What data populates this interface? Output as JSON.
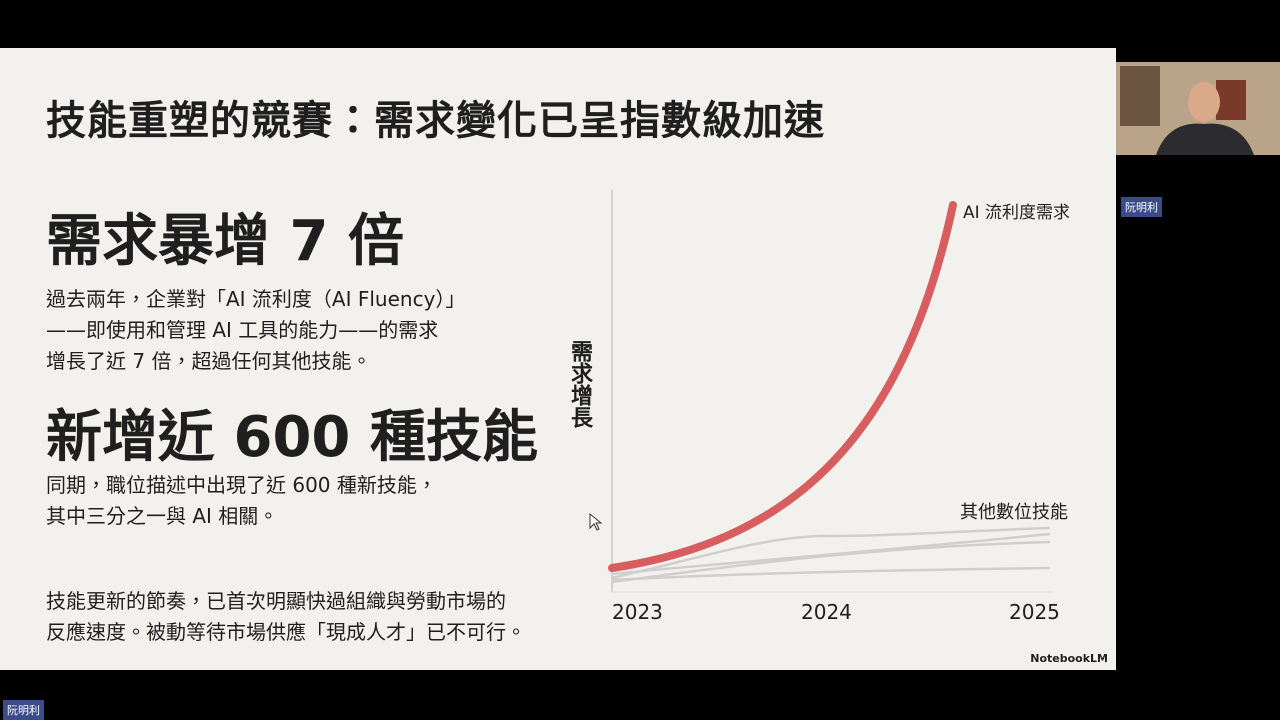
{
  "slide": {
    "title": "技能重塑的競賽：需求變化已呈指數級加速",
    "heading_1": "需求暴增 7 倍",
    "paragraph_1": [
      "過去兩年，企業對「AI 流利度（AI Fluency）」",
      "——即使用和管理 AI 工具的能力——的需求",
      "增長了近 7 倍，超過任何其他技能。"
    ],
    "heading_2": "新增近 600 種技能",
    "paragraph_2": [
      "同期，職位描述中出現了近 600 種新技能，",
      "其中三分之一與 AI 相關。"
    ],
    "paragraph_3": [
      "技能更新的節奏，已首次明顯快過組織與勞動市場的",
      "反應速度。被動等待市場供應「現成人才」已不可行。"
    ],
    "figure": {
      "y_label": "需求增長",
      "x_labels": [
        "2023",
        "2024",
        "2025"
      ],
      "ai_label": "AI 流利度需求",
      "other_label": "其他數位技能"
    },
    "brand": "NotebookLM"
  },
  "participants": [
    "阮明利",
    "阮明利"
  ]
}
